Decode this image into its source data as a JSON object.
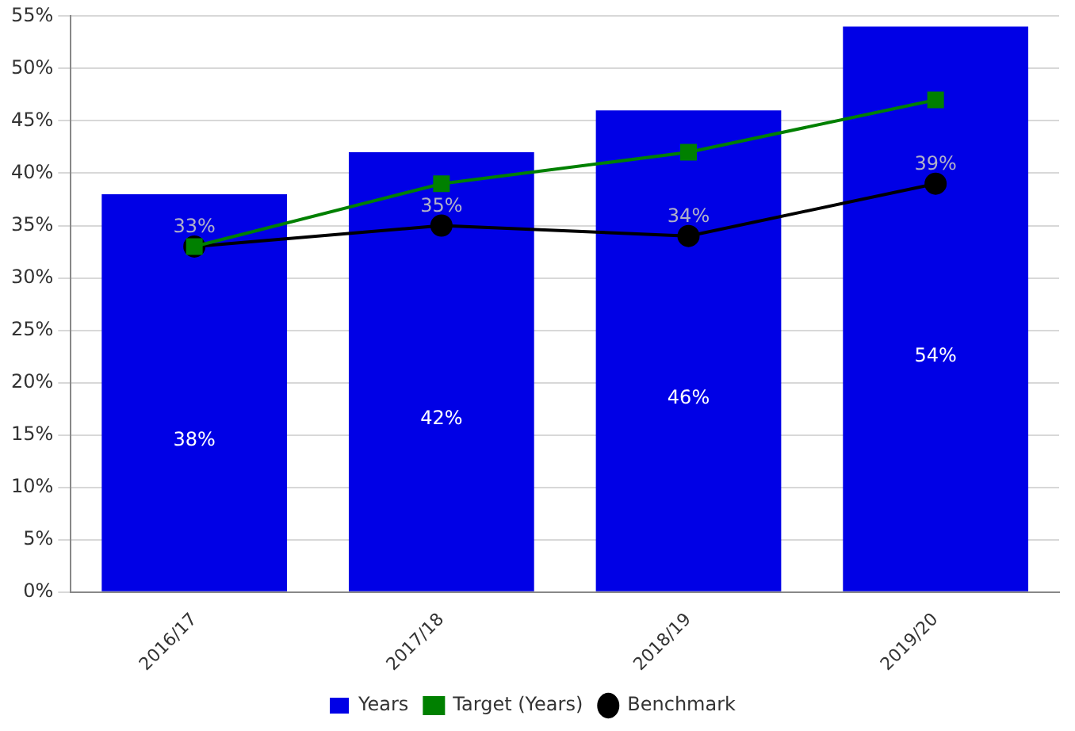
{
  "chart_data": {
    "type": "bar",
    "categories": [
      "2016/17",
      "2017/18",
      "2018/19",
      "2019/20"
    ],
    "series": [
      {
        "name": "Years",
        "color": "#0000e6",
        "values": [
          38,
          42,
          46,
          54
        ],
        "value_labels": [
          "38%",
          "42%",
          "46%",
          "54%"
        ]
      },
      {
        "name": "Target (Years)",
        "type": "line",
        "color": "#008000",
        "marker": "square",
        "values": [
          33,
          39,
          42,
          47
        ]
      },
      {
        "name": "Benchmark",
        "type": "line",
        "color": "#000000",
        "marker": "circle",
        "values": [
          33,
          35,
          34,
          39
        ],
        "value_labels": [
          "33%",
          "35%",
          "34%",
          "39%"
        ]
      }
    ],
    "ylim": [
      0,
      55
    ],
    "yticks": [
      {
        "value": 0,
        "label": "0%"
      },
      {
        "value": 5,
        "label": "5%"
      },
      {
        "value": 10,
        "label": "10%"
      },
      {
        "value": 15,
        "label": "15%"
      },
      {
        "value": 20,
        "label": "20%"
      },
      {
        "value": 25,
        "label": "25%"
      },
      {
        "value": 30,
        "label": "30%"
      },
      {
        "value": 35,
        "label": "35%"
      },
      {
        "value": 40,
        "label": "40%"
      },
      {
        "value": 45,
        "label": "45%"
      },
      {
        "value": 50,
        "label": "50%"
      },
      {
        "value": 55,
        "label": "55%"
      }
    ],
    "grid": "y",
    "legend": "bottom"
  }
}
